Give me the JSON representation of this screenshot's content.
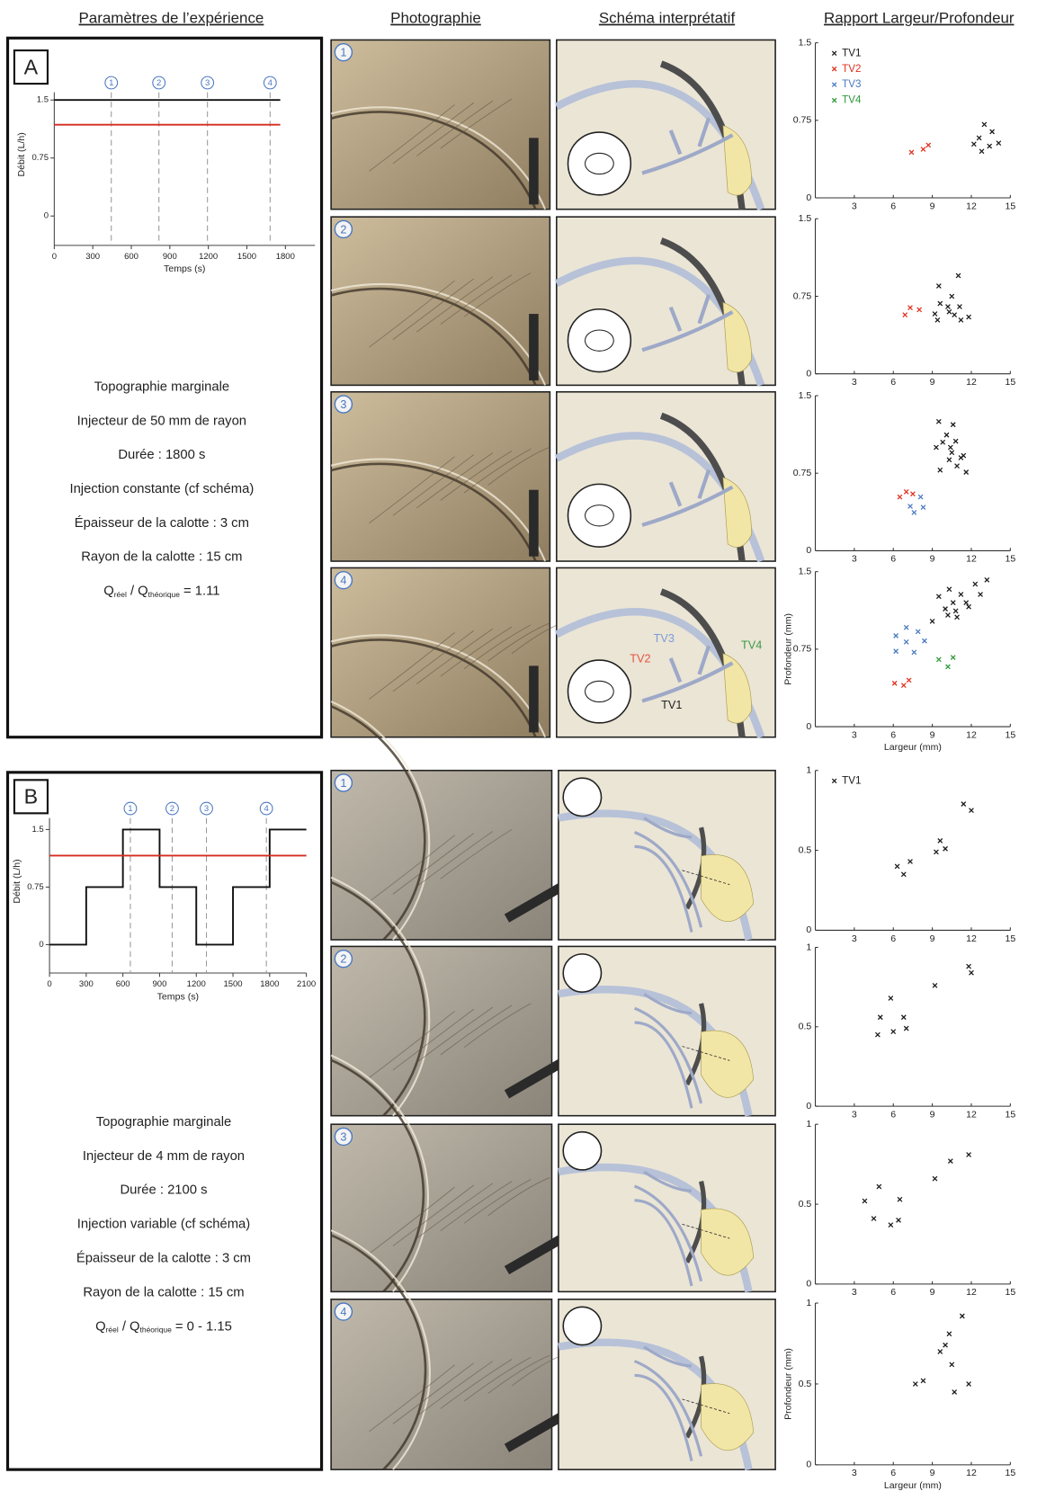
{
  "headers": [
    "Paramètres de l’expérience",
    "Photographie",
    "Schéma interprétatif",
    "Rapport Largeur/Profondeur"
  ],
  "panels": [
    {
      "label": "A",
      "flow_chart": {
        "type": "line",
        "ylabel": "Débit (L/h)",
        "xlabel": "Temps (s)",
        "xlim": [
          0,
          2030
        ],
        "ylim": [
          -0.38,
          1.6
        ],
        "xticks": [
          0,
          300,
          600,
          900,
          1200,
          1500,
          1800
        ],
        "yticks": [
          0,
          0.75,
          1.5
        ],
        "series": [
          {
            "color": "#111111",
            "x": [
              0,
              1760
            ],
            "values": [
              1.5,
              1.5
            ]
          },
          {
            "color": "#d62c1f",
            "x": [
              0,
              1760
            ],
            "values": [
              1.18,
              1.18
            ]
          }
        ],
        "markers": [
          {
            "value": 444,
            "label": "1"
          },
          {
            "value": 815,
            "label": "2"
          },
          {
            "value": 1193,
            "label": "3"
          },
          {
            "value": 1681,
            "label": "4"
          }
        ]
      },
      "parameters": [
        "Topographie marginale",
        "Injecteur de 50 mm de rayon",
        "Durée : 1800 s",
        "Injection constante (cf schéma)",
        "Épaisseur de la calotte : 3 cm",
        "Rayon de la calotte : 15 cm"
      ],
      "ratio": [
        "Q",
        "réel",
        " / Q",
        "théorique",
        " = 1.11"
      ],
      "rows": [
        {
          "number": "1",
          "scatter": {
            "type": "scatter",
            "xlim": [
              0,
              15
            ],
            "ylim": [
              0,
              1.5
            ],
            "xticks": [
              3,
              6,
              9,
              12,
              15
            ],
            "yticks": [
              0,
              0.75,
              1.5
            ],
            "legend": "upper left",
            "series": [
              {
                "name": "TV1",
                "color": "#1a1a1a",
                "x": [
                  12.2,
                  12.6,
                  13.0,
                  13.6,
                  12.8,
                  14.1,
                  13.4
                ],
                "values": [
                  0.52,
                  0.58,
                  0.71,
                  0.64,
                  0.45,
                  0.53,
                  0.5
                ]
              },
              {
                "name": "TV2",
                "color": "#e0301e",
                "x": [
                  7.4,
                  8.3,
                  8.7
                ],
                "values": [
                  0.44,
                  0.47,
                  0.51
                ]
              },
              {
                "name": "TV3",
                "color": "#4a78c2",
                "x": [],
                "values": []
              },
              {
                "name": "TV4",
                "color": "#2f9a3a",
                "x": [],
                "values": []
              }
            ]
          }
        },
        {
          "number": "2",
          "scatter": {
            "type": "scatter",
            "xlim": [
              0,
              15
            ],
            "ylim": [
              0,
              1.5
            ],
            "xticks": [
              3,
              6,
              9,
              12,
              15
            ],
            "yticks": [
              0,
              0.75,
              1.5
            ],
            "series": [
              {
                "color": "#1a1a1a",
                "x": [
                  9.2,
                  9.5,
                  9.6,
                  9.4,
                  10.3,
                  10.5,
                  10.7,
                  11.0,
                  11.1,
                  11.2,
                  11.8,
                  10.2
                ],
                "values": [
                  0.58,
                  0.85,
                  0.68,
                  0.52,
                  0.6,
                  0.75,
                  0.57,
                  0.95,
                  0.65,
                  0.52,
                  0.55,
                  0.65
                ]
              },
              {
                "color": "#e0301e",
                "x": [
                  6.9,
                  7.3,
                  8.0
                ],
                "values": [
                  0.57,
                  0.64,
                  0.62
                ]
              }
            ]
          }
        },
        {
          "number": "3",
          "scatter": {
            "type": "scatter",
            "xlim": [
              0,
              15
            ],
            "ylim": [
              0,
              1.5
            ],
            "xticks": [
              3,
              6,
              9,
              12,
              15
            ],
            "yticks": [
              0,
              0.75,
              1.5
            ],
            "series": [
              {
                "color": "#1a1a1a",
                "x": [
                  9.5,
                  9.3,
                  9.6,
                  9.8,
                  10.1,
                  10.3,
                  10.6,
                  10.5,
                  10.8,
                  10.9,
                  11.2,
                  11.4,
                  11.6,
                  10.4
                ],
                "values": [
                  1.25,
                  1.0,
                  0.78,
                  1.05,
                  1.12,
                  0.88,
                  1.22,
                  0.95,
                  1.06,
                  0.82,
                  0.9,
                  0.92,
                  0.76,
                  1.0
                ]
              },
              {
                "color": "#e0301e",
                "x": [
                  6.5,
                  7.0,
                  7.5
                ],
                "values": [
                  0.52,
                  0.57,
                  0.55
                ]
              },
              {
                "color": "#4a78c2",
                "x": [
                  7.3,
                  7.6,
                  8.1,
                  8.3
                ],
                "values": [
                  0.43,
                  0.37,
                  0.52,
                  0.42
                ]
              }
            ]
          }
        },
        {
          "number": "4",
          "schematic_labels": [
            {
              "text": "TV3",
              "color": "#7d9bd6"
            },
            {
              "text": "TV2",
              "color": "#e4553e"
            },
            {
              "text": "TV4",
              "color": "#3c9a44"
            },
            {
              "text": "TV1",
              "color": "#222222"
            }
          ],
          "scatter": {
            "type": "scatter",
            "xlim": [
              0,
              15
            ],
            "ylim": [
              0,
              1.5
            ],
            "xticks": [
              3,
              6,
              9,
              12,
              15
            ],
            "yticks": [
              0,
              0.75,
              1.5
            ],
            "xlabel": "Largeur (mm)",
            "ylabel": "Profondeur (mm)",
            "series": [
              {
                "color": "#1a1a1a",
                "x": [
                  9.0,
                  9.5,
                  10.0,
                  10.3,
                  10.6,
                  10.8,
                  10.9,
                  11.2,
                  11.6,
                  11.8,
                  12.3,
                  12.7,
                  13.2,
                  10.2
                ],
                "values": [
                  1.02,
                  1.26,
                  1.14,
                  1.33,
                  1.2,
                  1.12,
                  1.06,
                  1.28,
                  1.2,
                  1.16,
                  1.38,
                  1.28,
                  1.42,
                  1.08
                ]
              },
              {
                "color": "#4a78c2",
                "x": [
                  6.2,
                  6.2,
                  7.0,
                  7.0,
                  7.6,
                  7.9,
                  8.4
                ],
                "values": [
                  0.88,
                  0.73,
                  0.96,
                  0.82,
                  0.72,
                  0.92,
                  0.83
                ]
              },
              {
                "color": "#e0301e",
                "x": [
                  6.1,
                  6.8,
                  7.2
                ],
                "values": [
                  0.42,
                  0.4,
                  0.45
                ]
              },
              {
                "color": "#2f9a3a",
                "x": [
                  9.5,
                  10.2,
                  10.6
                ],
                "values": [
                  0.65,
                  0.58,
                  0.67
                ]
              }
            ]
          }
        }
      ]
    },
    {
      "label": "B",
      "flow_chart": {
        "type": "line",
        "ylabel": "Débit (L/h)",
        "xlabel": "Temps (s)",
        "xlim": [
          0,
          2100
        ],
        "ylim": [
          -0.37,
          1.65
        ],
        "xticks": [
          0,
          300,
          600,
          900,
          1200,
          1500,
          1800,
          2100
        ],
        "yticks": [
          0,
          0.75,
          1.5
        ],
        "series": [
          {
            "color": "#111111",
            "x": [
              0,
              300,
              300,
              600,
              600,
              900,
              900,
              1200,
              1200,
              1500,
              1500,
              1800,
              1800,
              2100
            ],
            "values": [
              0,
              0,
              0.75,
              0.75,
              1.5,
              1.5,
              0.75,
              0.75,
              0,
              0,
              0.75,
              0.75,
              1.5,
              1.5
            ]
          },
          {
            "color": "#d62c1f",
            "x": [
              0,
              2100
            ],
            "values": [
              1.16,
              1.16
            ]
          }
        ],
        "markers": [
          {
            "value": 661,
            "label": "1"
          },
          {
            "value": 1003,
            "label": "2"
          },
          {
            "value": 1283,
            "label": "3"
          },
          {
            "value": 1773,
            "label": "4"
          }
        ]
      },
      "parameters": [
        "Topographie marginale",
        "Injecteur de 4 mm de rayon",
        "Durée : 2100 s",
        "Injection variable (cf schéma)",
        "Épaisseur de la calotte : 3 cm",
        "Rayon de la calotte : 15 cm"
      ],
      "ratio": [
        "Q",
        "réel",
        " / Q",
        "théorique",
        " = 0 - 1.15"
      ],
      "rows": [
        {
          "number": "1",
          "scatter": {
            "type": "scatter",
            "xlim": [
              0,
              15
            ],
            "ylim": [
              0,
              1
            ],
            "xticks": [
              3,
              6,
              9,
              12,
              15
            ],
            "yticks": [
              0,
              0.5,
              1
            ],
            "legend": "upper left",
            "series": [
              {
                "name": "TV1",
                "color": "#1a1a1a",
                "x": [
                  6.3,
                  6.8,
                  7.3,
                  9.3,
                  9.6,
                  10.0,
                  11.4,
                  12.0
                ],
                "values": [
                  0.4,
                  0.35,
                  0.43,
                  0.49,
                  0.56,
                  0.51,
                  0.79,
                  0.75
                ]
              }
            ]
          }
        },
        {
          "number": "2",
          "scatter": {
            "type": "scatter",
            "xlim": [
              0,
              15
            ],
            "ylim": [
              0,
              1
            ],
            "xticks": [
              3,
              6,
              9,
              12,
              15
            ],
            "yticks": [
              0,
              0.5,
              1
            ],
            "series": [
              {
                "color": "#1a1a1a",
                "x": [
                  4.8,
                  5.0,
                  5.8,
                  6.0,
                  6.8,
                  7.0,
                  9.2,
                  11.8,
                  12.0
                ],
                "values": [
                  0.45,
                  0.56,
                  0.68,
                  0.47,
                  0.56,
                  0.49,
                  0.76,
                  0.88,
                  0.84
                ]
              }
            ]
          }
        },
        {
          "number": "3",
          "scatter": {
            "type": "scatter",
            "xlim": [
              0,
              15
            ],
            "ylim": [
              0,
              1
            ],
            "xticks": [
              3,
              6,
              9,
              12,
              15
            ],
            "yticks": [
              0,
              0.5,
              1
            ],
            "series": [
              {
                "color": "#1a1a1a",
                "x": [
                  3.8,
                  4.5,
                  4.9,
                  5.8,
                  6.4,
                  6.5,
                  9.2,
                  10.4,
                  11.8
                ],
                "values": [
                  0.52,
                  0.41,
                  0.61,
                  0.37,
                  0.4,
                  0.53,
                  0.66,
                  0.77,
                  0.81
                ]
              }
            ]
          }
        },
        {
          "number": "4",
          "scatter": {
            "type": "scatter",
            "xlim": [
              0,
              15
            ],
            "ylim": [
              0,
              1
            ],
            "xticks": [
              3,
              6,
              9,
              12,
              15
            ],
            "yticks": [
              0,
              0.5,
              1
            ],
            "xlabel": "Largeur (mm)",
            "ylabel": "Profondeur (mm)",
            "series": [
              {
                "color": "#1a1a1a",
                "x": [
                  7.7,
                  8.3,
                  9.6,
                  10.0,
                  10.3,
                  10.5,
                  10.7,
                  11.3,
                  11.8
                ],
                "values": [
                  0.5,
                  0.52,
                  0.7,
                  0.74,
                  0.81,
                  0.62,
                  0.45,
                  0.92,
                  0.5
                ]
              }
            ]
          }
        }
      ]
    }
  ]
}
